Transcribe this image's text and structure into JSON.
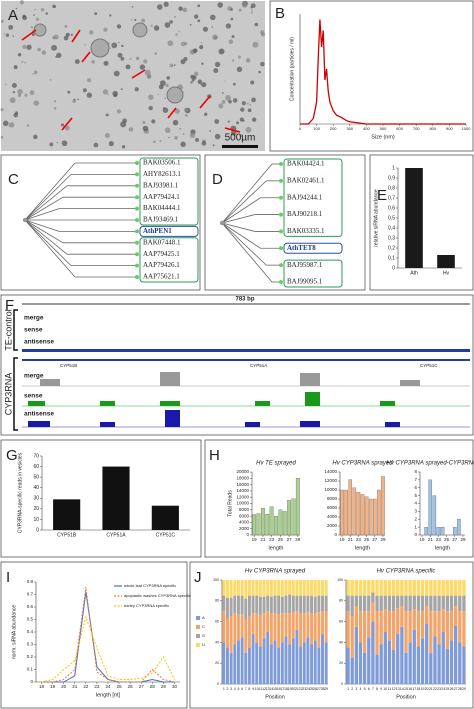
{
  "panel_labels": [
    "A",
    "B",
    "C",
    "D",
    "E",
    "F",
    "G",
    "H",
    "I",
    "J"
  ],
  "micrograph": {
    "scale_bar": "500µm"
  },
  "tree_c": {
    "leaves": [
      "BAK03506.1",
      "AHY82613.1",
      "BAJ93981.1",
      "AAP79424.1",
      "BAK04444.1",
      "BAJ93469.1",
      "AthPEN1",
      "BAK07448.1",
      "AAP79425.1",
      "AAP79426.1",
      "AAP75621.1"
    ]
  },
  "tree_d": {
    "leaves": [
      "BAK04424.1",
      "BAK02461.1",
      "BAJ94244.1",
      "BAJ90218.1",
      "BAK03335.1",
      "AthTET8",
      "BAJ95987.1",
      "BAJ99095.1"
    ]
  },
  "browser": {
    "length": "783 bp",
    "groups": [
      "TE-control",
      "CYP3RNA"
    ],
    "tracks": [
      "merge",
      "sense",
      "antisense"
    ],
    "genes": [
      "CYP51B",
      "CYP51A",
      "CYP51C"
    ]
  },
  "chart_data": [
    {
      "type": "line",
      "xlabel": "Size (nm)",
      "ylabel": "Concentration (particles / ml)",
      "x": [
        0,
        50,
        80,
        100,
        110,
        120,
        130,
        140,
        150,
        160,
        170,
        180,
        200,
        220,
        250,
        280,
        300,
        350,
        400,
        1000
      ],
      "values": [
        0,
        0,
        0.5,
        2,
        6,
        9.5,
        7,
        8.5,
        4,
        5,
        3,
        2,
        1.2,
        0.8,
        0.6,
        0.3,
        0.2,
        0.1,
        0,
        0
      ],
      "color": "#cc0000",
      "xlim": [
        0,
        1000
      ],
      "xticks": [
        0,
        100,
        200,
        300,
        400,
        500,
        600,
        700,
        800,
        900,
        1000
      ],
      "ylim": [
        0,
        10
      ]
    },
    {
      "type": "bar",
      "ylabel": "relative siRNA abundance",
      "categories": [
        "Ath",
        "Hv"
      ],
      "values": [
        1,
        0.13
      ],
      "color": "#1a1a1a",
      "ylim": [
        0,
        1
      ],
      "yticks": [
        0,
        {
          "value": 0.1,
          "label": "0,1"
        },
        {
          "value": 0.2,
          "label": "0,2"
        },
        {
          "value": 0.3,
          "label": "0,3"
        },
        {
          "value": 0.4,
          "label": "0,4"
        },
        {
          "value": 0.5,
          "label": "0,5"
        },
        {
          "value": 0.6,
          "label": "0,6"
        },
        {
          "value": 0.7,
          "label": "0,7"
        },
        {
          "value": 0.8,
          "label": "0,8"
        },
        {
          "value": 0.9,
          "label": "0,9"
        },
        1
      ]
    },
    {
      "type": "bar",
      "ylabel": "CYP3RNA-specific reads in vesicles",
      "categories": [
        "CYP51B",
        "CYP51A",
        "CYP51C"
      ],
      "values": [
        29,
        60,
        23
      ],
      "color": "#111111",
      "ylim": [
        0,
        70
      ],
      "yticks": [
        0,
        10,
        20,
        30,
        40,
        50,
        60,
        70
      ]
    },
    {
      "type": "bar",
      "title": "Hv TE sprayed",
      "ylabel": "Total Reads",
      "xlabel": "length",
      "x": [
        19,
        20,
        21,
        22,
        23,
        24,
        25,
        26,
        27,
        28,
        29
      ],
      "values": [
        6500,
        6800,
        8500,
        6600,
        9000,
        6000,
        8000,
        7500,
        11000,
        11500,
        18000
      ],
      "color": "#a9d18e",
      "xlim": [
        18.5,
        29.5
      ],
      "xticks": [
        19,
        21,
        23,
        25,
        27,
        29
      ],
      "ylim": [
        0,
        20000
      ],
      "yticks": [
        0,
        2000,
        4000,
        6000,
        8000,
        10000,
        12000,
        14000,
        16000,
        18000,
        20000
      ]
    },
    {
      "type": "bar",
      "title": "Hv CYP3RNA sprayed",
      "xlabel": "length",
      "x": [
        19,
        20,
        21,
        22,
        23,
        24,
        25,
        26,
        27,
        28,
        29
      ],
      "values": [
        10000,
        10000,
        12300,
        10500,
        9500,
        9000,
        8500,
        8000,
        8000,
        10000,
        13000
      ],
      "color": "#f4b183",
      "xlim": [
        18.5,
        29.5
      ],
      "xticks": [
        19,
        21,
        23,
        25,
        27,
        29
      ],
      "ylim": [
        0,
        14000
      ],
      "yticks": [
        0,
        2000,
        4000,
        6000,
        8000,
        10000,
        12000,
        14000
      ]
    },
    {
      "type": "bar",
      "title": "Hv CYP3RNA sprayed-CYP3RNA specific",
      "xlabel": "length",
      "x": [
        19,
        20,
        21,
        22,
        23,
        24,
        25,
        26,
        27,
        28,
        29
      ],
      "values": [
        0,
        1,
        7,
        5,
        1,
        1,
        0,
        0,
        1,
        2,
        0
      ],
      "color": "#9dc3e6",
      "xlim": [
        18.5,
        29.5
      ],
      "xticks": [
        19,
        21,
        23,
        25,
        27,
        29
      ],
      "ylim": [
        0,
        8
      ],
      "yticks": [
        0,
        1,
        2,
        3,
        4,
        5,
        6,
        7,
        8
      ]
    },
    {
      "type": "line",
      "xlabel": "length [nt]",
      "ylabel": "norm. siRNA abundance",
      "legend": "upper right",
      "x": [
        18,
        19,
        20,
        21,
        22,
        23,
        24,
        25,
        26,
        27,
        28,
        29,
        30
      ],
      "series": [
        {
          "name": "whole leaf CYP3RNA specific",
          "color": "#4472c4",
          "dashed": false,
          "values": [
            0,
            0,
            0,
            0.05,
            0.72,
            0.12,
            0.02,
            0,
            0,
            0,
            0.02,
            0,
            0
          ]
        },
        {
          "name": "apoplastic washes CYP3RNA specific",
          "color": "#ed7d31",
          "dashed": true,
          "values": [
            0,
            0,
            0.02,
            0.1,
            0.76,
            0.08,
            0.02,
            0,
            0,
            0,
            0.1,
            0.02,
            0
          ]
        },
        {
          "name": "barley CYP3RNA specific",
          "color": "#ffc000",
          "dashed": true,
          "values": [
            0,
            0.02,
            0.1,
            0.17,
            0.52,
            0.27,
            0.05,
            0.02,
            0.02,
            0.03,
            0.07,
            0.2,
            0.02
          ]
        }
      ],
      "xlim": [
        17.5,
        30.5
      ],
      "xticks": [
        18,
        19,
        20,
        21,
        22,
        23,
        24,
        25,
        26,
        27,
        28,
        29,
        30
      ],
      "ylim": [
        0,
        0.8
      ],
      "yticks": [
        0,
        0.1,
        0.2,
        0.3,
        0.4,
        0.5,
        0.6,
        0.7,
        0.8
      ]
    },
    {
      "type": "stacked_bar",
      "title": "Hv CYP3RNA sprayed",
      "xlabel": "Position",
      "legend": "left",
      "categories": [
        "1",
        "2",
        "3",
        "4",
        "5",
        "6",
        "7",
        "8",
        "9",
        "10",
        "11",
        "12",
        "13",
        "14",
        "15",
        "16",
        "17",
        "18",
        "19",
        "20",
        "21",
        "22",
        "23",
        "24",
        "25",
        "26",
        "27",
        "28",
        "29"
      ],
      "series": [
        {
          "name": "A",
          "color": "#7f9bd8",
          "values": [
            40,
            35,
            30,
            38,
            42,
            45,
            30,
            35,
            48,
            40,
            36,
            44,
            50,
            38,
            42,
            35,
            40,
            46,
            38,
            44,
            52,
            36,
            40,
            45,
            38,
            42,
            35,
            48,
            40
          ]
        },
        {
          "name": "C",
          "color": "#f4a469",
          "values": [
            30,
            28,
            35,
            30,
            25,
            22,
            32,
            30,
            20,
            28,
            30,
            24,
            20,
            30,
            26,
            32,
            28,
            22,
            30,
            25,
            18,
            32,
            28,
            24,
            30,
            26,
            34,
            22,
            30
          ]
        },
        {
          "name": "G",
          "color": "#a5a5a5",
          "values": [
            15,
            20,
            18,
            17,
            18,
            18,
            20,
            20,
            17,
            17,
            18,
            16,
            15,
            16,
            17,
            18,
            16,
            17,
            18,
            16,
            15,
            17,
            17,
            16,
            17,
            16,
            16,
            15,
            15
          ]
        },
        {
          "name": "U",
          "color": "#ffd966",
          "values": [
            15,
            17,
            17,
            15,
            15,
            15,
            18,
            15,
            15,
            15,
            16,
            16,
            15,
            16,
            15,
            15,
            16,
            15,
            14,
            15,
            15,
            15,
            15,
            15,
            15,
            16,
            15,
            15,
            15
          ]
        }
      ],
      "ylim": [
        0,
        100
      ],
      "yticks": [
        0,
        20,
        40,
        60,
        80,
        100
      ]
    },
    {
      "type": "stacked_bar",
      "title": "Hv CYP3RNA specific",
      "xlabel": "Position",
      "categories": [
        "1",
        "2",
        "3",
        "4",
        "5",
        "6",
        "7",
        "8",
        "9",
        "10",
        "11",
        "12",
        "13",
        "14",
        "15",
        "16",
        "17",
        "18",
        "19",
        "20",
        "21",
        "22",
        "23",
        "24",
        "25",
        "26",
        "27",
        "28",
        "29"
      ],
      "series": [
        {
          "name": "A",
          "color": "#7f9bd8",
          "values": [
            35,
            25,
            55,
            40,
            30,
            45,
            60,
            28,
            38,
            50,
            42,
            33,
            48,
            55,
            30,
            40,
            52,
            36,
            44,
            58,
            30,
            46,
            38,
            50,
            34,
            42,
            56,
            40,
            36
          ]
        },
        {
          "name": "C",
          "color": "#f4a469",
          "values": [
            35,
            40,
            20,
            30,
            40,
            25,
            18,
            42,
            32,
            22,
            28,
            37,
            25,
            20,
            40,
            30,
            20,
            34,
            26,
            17,
            40,
            24,
            32,
            22,
            36,
            28,
            19,
            30,
            34
          ]
        },
        {
          "name": "G",
          "color": "#a5a5a5",
          "values": [
            15,
            20,
            10,
            15,
            15,
            15,
            10,
            15,
            15,
            13,
            15,
            15,
            12,
            10,
            15,
            15,
            13,
            15,
            15,
            10,
            15,
            15,
            15,
            13,
            15,
            15,
            10,
            15,
            15
          ]
        },
        {
          "name": "U",
          "color": "#ffd966",
          "values": [
            15,
            15,
            15,
            15,
            15,
            15,
            12,
            15,
            15,
            15,
            15,
            15,
            15,
            15,
            15,
            15,
            15,
            15,
            15,
            15,
            15,
            15,
            15,
            15,
            15,
            15,
            15,
            15,
            15
          ]
        }
      ],
      "ylim": [
        0,
        100
      ],
      "yticks": [
        0,
        20,
        40,
        60,
        80,
        100
      ]
    }
  ]
}
